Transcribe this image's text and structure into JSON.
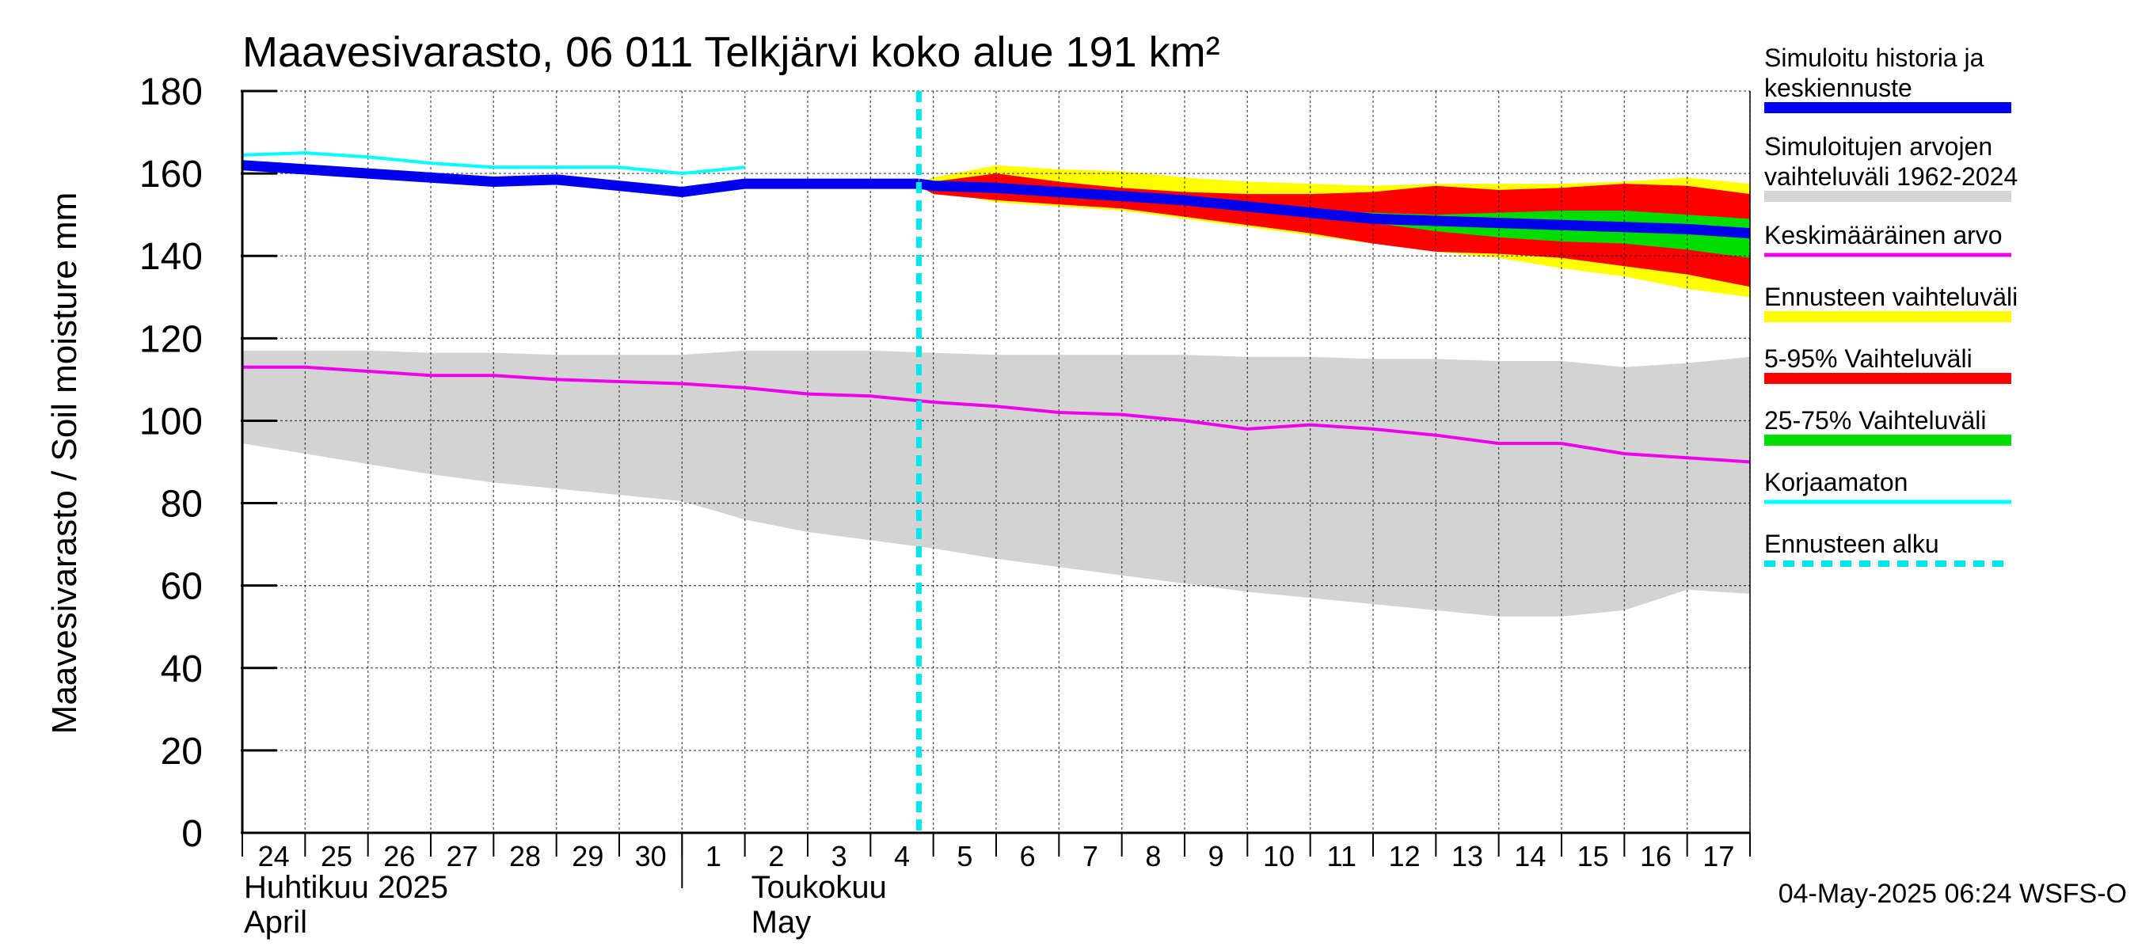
{
  "chart_data": {
    "type": "area",
    "title": "Maavesivarasto, 06 011 Telkjärvi koko alue 191 km²",
    "ylabel": "Maavesivarasto / Soil moisture   mm",
    "ylim": [
      0,
      180
    ],
    "yticks": [
      0,
      20,
      40,
      60,
      80,
      100,
      120,
      140,
      160,
      180
    ],
    "grid": true,
    "xlim": [
      24,
      48
    ],
    "day_ticks": [
      "24",
      "25",
      "26",
      "27",
      "28",
      "29",
      "30",
      "1",
      "2",
      "3",
      "4",
      "5",
      "6",
      "7",
      "8",
      "9",
      "10",
      "11",
      "12",
      "13",
      "14",
      "15",
      "16",
      "17"
    ],
    "month_labels": [
      {
        "fi": "Huhtikuu  2025",
        "en": "April",
        "start_day": 24
      },
      {
        "fi": "Toukokuu",
        "en": "May",
        "start_day": 32
      }
    ],
    "month_divider_day": 31,
    "forecast_start_day": 34.77,
    "legend_position": "right",
    "legend": [
      {
        "label": "Simuloitu historia ja keskiennuste",
        "lines": [
          "Simuloitu historia ja",
          "keskiennuste"
        ],
        "color": "#0000ee",
        "style": "thick"
      },
      {
        "label": "Simuloitujen arvojen vaihteluväli 1962-2024",
        "lines": [
          "Simuloitujen arvojen",
          "vaihteluväli 1962-2024"
        ],
        "color": "#d3d3d3",
        "style": "band"
      },
      {
        "label": "Keskimääräinen arvo",
        "lines": [
          "Keskimääräinen arvo"
        ],
        "color": "#ee00ee",
        "style": "line"
      },
      {
        "label": "Ennusteen vaihteluväli",
        "lines": [
          "Ennusteen vaihteluväli"
        ],
        "color": "#ffff00",
        "style": "band"
      },
      {
        "label": "5-95% Vaihteluväli",
        "lines": [
          "5-95% Vaihteluväli"
        ],
        "color": "#ff0000",
        "style": "band"
      },
      {
        "label": "25-75% Vaihteluväli",
        "lines": [
          "25-75% Vaihteluväli"
        ],
        "color": "#00dd00",
        "style": "band"
      },
      {
        "label": "Korjaamaton",
        "lines": [
          "Korjaamaton"
        ],
        "color": "#00ffff",
        "style": "line"
      },
      {
        "label": "Ennusteen alku",
        "lines": [
          "Ennusteen alku"
        ],
        "color": "#00e5ee",
        "style": "dashed"
      }
    ],
    "footer": "04-May-2025 06:24 WSFS-O",
    "series": {
      "hist_range": {
        "x": [
          24,
          25,
          26,
          27,
          28,
          29,
          30,
          31,
          32,
          33,
          34,
          35,
          36,
          37,
          38,
          39,
          40,
          41,
          42,
          43,
          44,
          45,
          46,
          47,
          48
        ],
        "hi": [
          117,
          117,
          117,
          116.5,
          116.5,
          116,
          116,
          116,
          117,
          117,
          117,
          116.5,
          116,
          116,
          116,
          116,
          115.5,
          115.5,
          115,
          115,
          114.5,
          114.5,
          113,
          114,
          115.5
        ],
        "lo": [
          94.5,
          92,
          89.5,
          87,
          85,
          83.5,
          82,
          80.5,
          76,
          73,
          71,
          69,
          66.5,
          64.5,
          62.5,
          60.5,
          58.5,
          57,
          55.5,
          54,
          52.5,
          52.5,
          54,
          59,
          58
        ]
      },
      "mean": {
        "x": [
          24,
          25,
          26,
          27,
          28,
          29,
          30,
          31,
          32,
          33,
          34,
          35,
          36,
          37,
          38,
          39,
          40,
          41,
          42,
          43,
          44,
          45,
          46,
          47,
          48
        ],
        "y": [
          113,
          113,
          112,
          111,
          111,
          110,
          109.5,
          109,
          108,
          106.5,
          106,
          104.5,
          103.5,
          102,
          101.5,
          100,
          98,
          99,
          98,
          96.5,
          94.5,
          94.5,
          92,
          91,
          90
        ]
      },
      "uncorrected": {
        "x": [
          24,
          25,
          26,
          27,
          28,
          29,
          30,
          31,
          32
        ],
        "y": [
          164.5,
          165,
          164,
          162.5,
          161.5,
          161.5,
          161.5,
          160,
          161.5
        ]
      },
      "history": {
        "x": [
          24,
          25,
          26,
          27,
          28,
          29,
          30,
          31,
          32,
          33,
          34,
          34.77
        ],
        "y": [
          162,
          161,
          160,
          159,
          158,
          158.5,
          157,
          155.5,
          157.5,
          157.5,
          157.5,
          157.5
        ]
      },
      "forecast_range": {
        "x": [
          34.77,
          35,
          36,
          37,
          38,
          39,
          40,
          41,
          42,
          43,
          44,
          45,
          46,
          47,
          48
        ],
        "hi": [
          158,
          159,
          162,
          161,
          160.5,
          159,
          158,
          157.5,
          157,
          157.5,
          157.5,
          157.5,
          158,
          159,
          157.5
        ],
        "lo": [
          157,
          156,
          153,
          152,
          151,
          149,
          147,
          145,
          143,
          141,
          139.5,
          137,
          135,
          132,
          130
        ]
      },
      "p5_95": {
        "x": [
          34.77,
          35,
          36,
          37,
          38,
          39,
          40,
          41,
          42,
          43,
          44,
          45,
          46,
          47,
          48
        ],
        "hi": [
          157.5,
          158,
          160,
          158,
          156.5,
          155.5,
          155,
          155,
          155.5,
          157,
          156,
          156.5,
          157.5,
          157,
          155
        ],
        "lo": [
          157,
          155,
          153.5,
          152.5,
          151.5,
          149.5,
          147.5,
          145.5,
          143,
          141,
          140.5,
          139.5,
          137.5,
          135.5,
          132.5
        ]
      },
      "p25_75": {
        "x": [
          41,
          42,
          43,
          44,
          45,
          46,
          47,
          48
        ],
        "hi": [
          151,
          150.5,
          150,
          150.5,
          151,
          151,
          150,
          149
        ],
        "lo": [
          150,
          148,
          146,
          144.5,
          143.5,
          143,
          141.5,
          139.5
        ]
      },
      "median": {
        "x": [
          34.77,
          35,
          36,
          37,
          38,
          39,
          40,
          41,
          42,
          43,
          44,
          45,
          46,
          47,
          48
        ],
        "y": [
          157.5,
          157,
          156.5,
          155.5,
          154.5,
          153.5,
          152,
          150.5,
          149,
          148.5,
          148,
          147.5,
          147,
          146.5,
          145.5
        ]
      }
    }
  }
}
